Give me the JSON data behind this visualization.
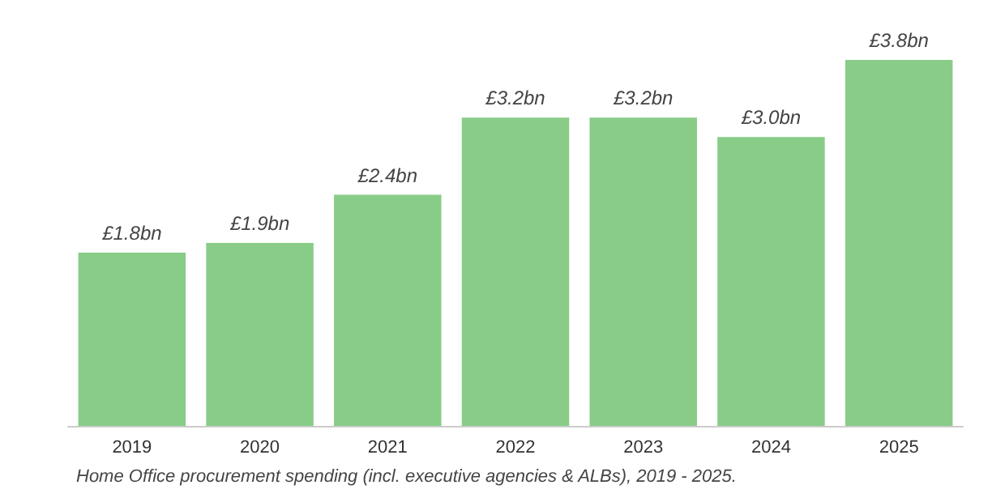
{
  "chart_data": {
    "type": "bar",
    "categories": [
      "2019",
      "2020",
      "2021",
      "2022",
      "2023",
      "2024",
      "2025"
    ],
    "values": [
      1.8,
      1.9,
      2.4,
      3.2,
      3.2,
      3.0,
      3.8
    ],
    "value_labels": [
      "£1.8bn",
      "£1.9bn",
      "£2.4bn",
      "£3.2bn",
      "£3.2bn",
      "£3.0bn",
      "£3.8bn"
    ],
    "color": "#88cc88",
    "annotations": [
      "Home Office procurement spending (incl. executive agencies & ALBs), 2019 - 2025."
    ]
  }
}
